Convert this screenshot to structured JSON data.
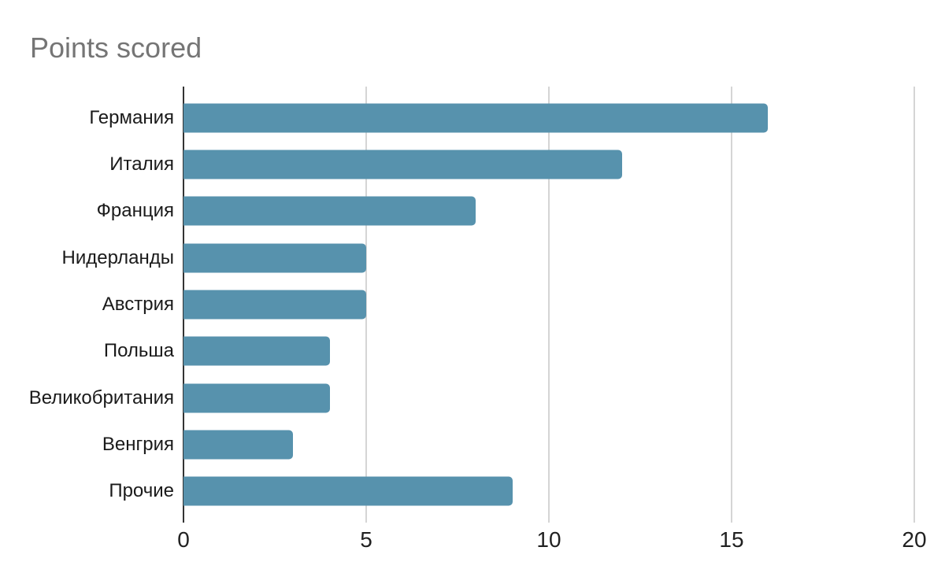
{
  "page": {
    "background": "#ffffff"
  },
  "chart_data": {
    "type": "bar",
    "orientation": "horizontal",
    "title": "Points scored",
    "categories": [
      "Германия",
      "Италия",
      "Франция",
      "Нидерланды",
      "Австрия",
      "Польша",
      "Великобритания",
      "Венгрия",
      "Прочие"
    ],
    "values": [
      16,
      12,
      8,
      5,
      5,
      4,
      4,
      3,
      9
    ],
    "xlabel": "",
    "ylabel": "",
    "xlim": [
      0,
      20
    ],
    "x_ticks": [
      0,
      5,
      10,
      15,
      20
    ],
    "grid": "vertical-gridlines-on",
    "legend": "none",
    "colors": {
      "bar": "#5792ad",
      "gridline": "#d5d5d5",
      "axis_line": "#333333",
      "title_text": "#757575",
      "tick_text": "#212121",
      "label_text": "#1a1a1a",
      "background": "#ffffff"
    }
  }
}
